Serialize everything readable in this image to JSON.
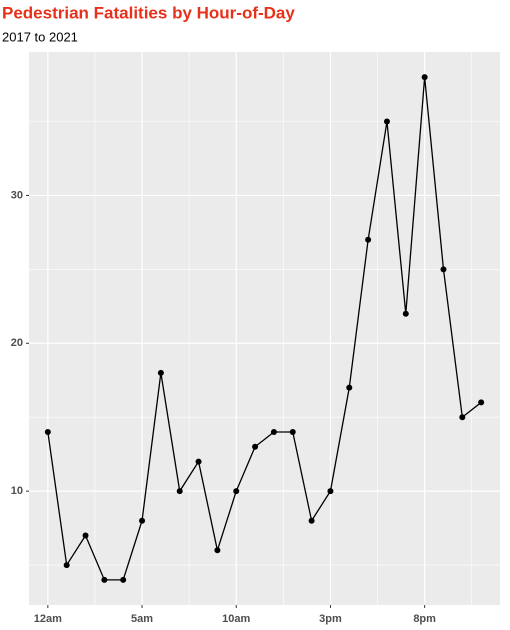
{
  "chart_data": {
    "type": "line",
    "title": "Pedestrian Fatalities by Hour-of-Day",
    "subtitle": "2017 to 2021",
    "x": [
      0,
      1,
      2,
      3,
      4,
      5,
      6,
      7,
      8,
      9,
      10,
      11,
      12,
      13,
      14,
      15,
      16,
      17,
      18,
      19,
      20,
      21,
      22,
      23
    ],
    "series": [
      {
        "color": "#000000",
        "values": [
          14,
          5,
          7,
          4,
          4,
          8,
          18,
          10,
          12,
          6,
          10,
          13,
          14,
          14,
          8,
          10,
          17,
          27,
          35,
          22,
          38,
          25,
          15,
          16
        ]
      }
    ],
    "xlim": [
      -1,
      24
    ],
    "ylim": [
      2.3,
      39.7
    ],
    "xticks": [
      {
        "value": 0,
        "label": "12am"
      },
      {
        "value": 5,
        "label": "5am"
      },
      {
        "value": 10,
        "label": "10am"
      },
      {
        "value": 15,
        "label": "3pm"
      },
      {
        "value": 20,
        "label": "8pm"
      }
    ],
    "yticks": [
      10,
      20,
      30
    ],
    "xminor": [
      2.5,
      7.5,
      12.5,
      17.5,
      22.5
    ],
    "yminor": [
      5,
      15,
      25,
      35
    ],
    "grid": true,
    "title_color": "#e8311a"
  }
}
